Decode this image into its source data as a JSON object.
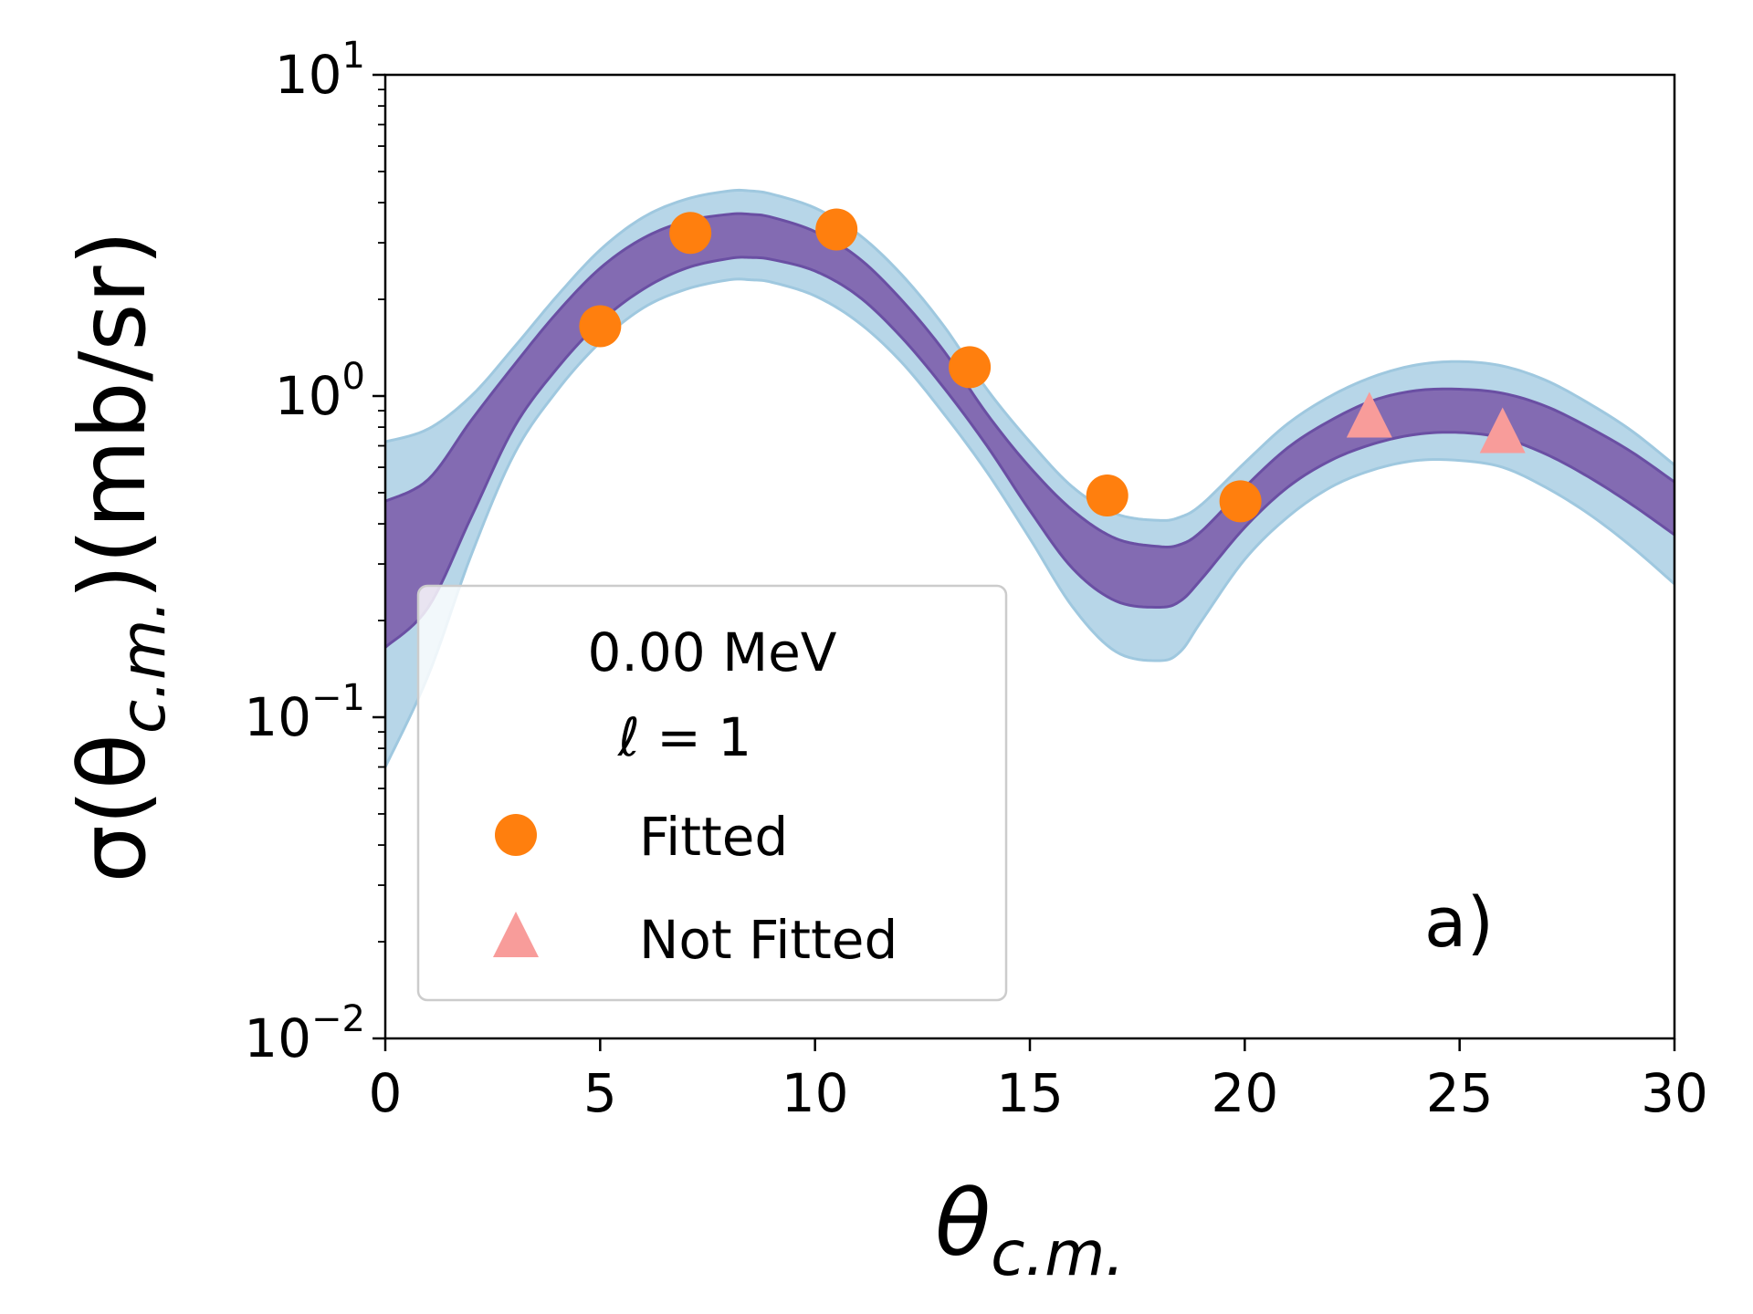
{
  "chart_data": {
    "type": "scatter",
    "title": "",
    "xlabel": "θc.m.",
    "xlabel_main": "θ",
    "xlabel_sub": "c.m.",
    "ylabel": "σ(θc.m.)(mb/sr)",
    "ylabel_pre": "σ(θ",
    "ylabel_sub": "c.m.",
    "ylabel_post": ")(mb/sr)",
    "xlim": [
      0,
      30
    ],
    "ylim": [
      0.01,
      10
    ],
    "yscale": "log",
    "grid": false,
    "x_ticks": [
      0,
      5,
      10,
      15,
      20,
      25,
      30
    ],
    "x_tick_labels": [
      "0",
      "5",
      "10",
      "15",
      "20",
      "25",
      "30"
    ],
    "y_ticks": [
      {
        "value": 0.01,
        "base": "10",
        "exp": "−2"
      },
      {
        "value": 0.1,
        "base": "10",
        "exp": "−1"
      },
      {
        "value": 1,
        "base": "10",
        "exp": "0"
      },
      {
        "value": 10,
        "base": "10",
        "exp": "1"
      }
    ],
    "bands": [
      {
        "name": "outer-band",
        "color": "#b7d6e8",
        "edge_color": "#9fc8df",
        "x": [
          0,
          1,
          2,
          3,
          4,
          5,
          6,
          7,
          8,
          8.5,
          9,
          10,
          11,
          12,
          13,
          14,
          15,
          16,
          17,
          18,
          18.5,
          19,
          20,
          21,
          22,
          23,
          24,
          25,
          26,
          27,
          28,
          29,
          30
        ],
        "upper": [
          0.72,
          0.79,
          1.0,
          1.42,
          2.05,
          2.85,
          3.6,
          4.1,
          4.35,
          4.35,
          4.25,
          3.85,
          3.2,
          2.4,
          1.65,
          1.05,
          0.72,
          0.52,
          0.43,
          0.41,
          0.42,
          0.46,
          0.62,
          0.82,
          1.0,
          1.15,
          1.25,
          1.28,
          1.24,
          1.12,
          0.95,
          0.78,
          0.61
        ],
        "lower": [
          0.07,
          0.135,
          0.32,
          0.66,
          1.04,
          1.47,
          1.88,
          2.15,
          2.3,
          2.3,
          2.26,
          2.05,
          1.7,
          1.28,
          0.88,
          0.58,
          0.36,
          0.22,
          0.16,
          0.15,
          0.16,
          0.2,
          0.31,
          0.42,
          0.52,
          0.59,
          0.63,
          0.63,
          0.6,
          0.52,
          0.43,
          0.34,
          0.26
        ]
      },
      {
        "name": "inner-band",
        "color": "#836bb2",
        "edge_color": "#6a4fa3",
        "x": [
          0,
          1,
          2,
          3,
          4,
          5,
          6,
          7,
          8,
          8.5,
          9,
          10,
          11,
          12,
          13,
          14,
          15,
          16,
          17,
          18,
          18.5,
          19,
          20,
          21,
          22,
          23,
          24,
          25,
          26,
          27,
          28,
          29,
          30
        ],
        "upper": [
          0.47,
          0.55,
          0.84,
          1.25,
          1.82,
          2.5,
          3.1,
          3.5,
          3.68,
          3.68,
          3.6,
          3.25,
          2.7,
          2.0,
          1.38,
          0.88,
          0.6,
          0.44,
          0.36,
          0.34,
          0.345,
          0.38,
          0.52,
          0.69,
          0.84,
          0.97,
          1.04,
          1.05,
          1.02,
          0.93,
          0.8,
          0.67,
          0.54
        ],
        "lower": [
          0.165,
          0.22,
          0.42,
          0.8,
          1.22,
          1.7,
          2.15,
          2.5,
          2.68,
          2.7,
          2.66,
          2.45,
          2.05,
          1.53,
          1.06,
          0.7,
          0.44,
          0.29,
          0.23,
          0.22,
          0.23,
          0.27,
          0.39,
          0.52,
          0.63,
          0.71,
          0.76,
          0.77,
          0.74,
          0.66,
          0.56,
          0.46,
          0.37
        ]
      }
    ],
    "series": [
      {
        "name": "Fitted",
        "marker": "circle",
        "color": "#ff7f0e",
        "x": [
          5.0,
          7.1,
          10.5,
          13.6,
          16.8,
          19.9
        ],
        "y": [
          1.65,
          3.22,
          3.3,
          1.23,
          0.49,
          0.47
        ]
      },
      {
        "name": "Not Fitted",
        "marker": "triangle",
        "color": "#f89c9a",
        "x": [
          22.9,
          26.0
        ],
        "y": [
          0.86,
          0.77
        ]
      }
    ],
    "legend": {
      "position": "lower-left",
      "title_line1": "0.00 MeV",
      "title_line2_symbol": "ℓ",
      "title_line2_rest": " = 1",
      "entries": [
        "Fitted",
        "Not Fitted"
      ]
    },
    "annotation": "a)"
  }
}
